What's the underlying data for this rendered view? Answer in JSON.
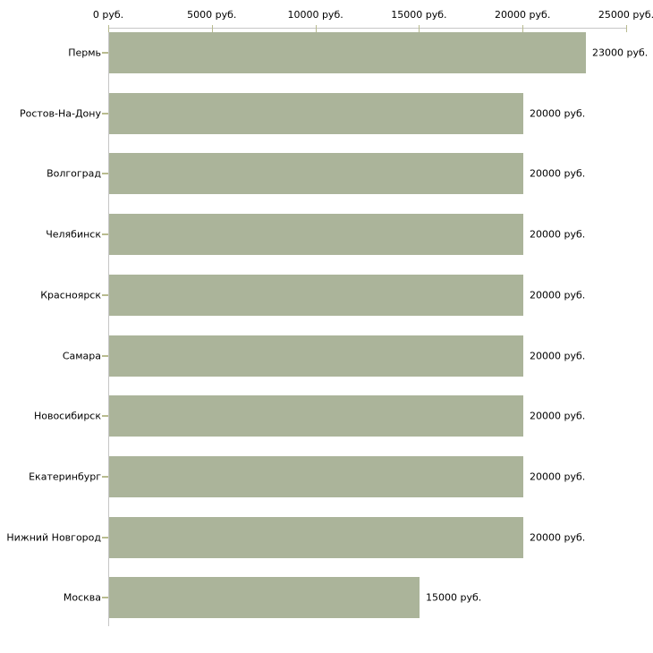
{
  "chart_data": {
    "type": "bar",
    "orientation": "horizontal",
    "title": "",
    "xlabel": "",
    "ylabel": "",
    "grid": false,
    "legend": false,
    "unit_suffix": " руб.",
    "categories": [
      "Пермь",
      "Ростов-На-Дону",
      "Волгоград",
      "Челябинск",
      "Красноярск",
      "Самара",
      "Новосибирск",
      "Екатеринбург",
      "Нижний Новгород",
      "Москва"
    ],
    "values": [
      23000,
      20000,
      20000,
      20000,
      20000,
      20000,
      20000,
      20000,
      20000,
      15000
    ],
    "value_labels": [
      "23000 руб.",
      "20000 руб.",
      "20000 руб.",
      "20000 руб.",
      "20000 руб.",
      "20000 руб.",
      "20000 руб.",
      "20000 руб.",
      "20000 руб.",
      "15000 руб."
    ],
    "xlim": [
      0,
      25000
    ],
    "x_ticks": [
      0,
      5000,
      10000,
      15000,
      20000,
      25000
    ],
    "x_tick_labels": [
      "0 руб.",
      "5000 руб.",
      "10000 руб.",
      "15000 руб.",
      "20000 руб.",
      "25000 руб."
    ],
    "colors": {
      "bar_fill": "#abb49a",
      "axis_line": "#c6c6c6",
      "tick_mark": "#b8bb8f",
      "text": "#000000",
      "background": "#ffffff"
    }
  }
}
